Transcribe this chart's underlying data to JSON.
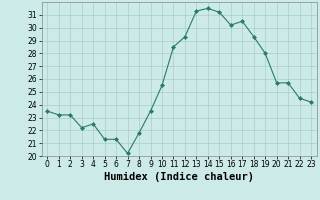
{
  "x": [
    0,
    1,
    2,
    3,
    4,
    5,
    6,
    7,
    8,
    9,
    10,
    11,
    12,
    13,
    14,
    15,
    16,
    17,
    18,
    19,
    20,
    21,
    22,
    23
  ],
  "y": [
    23.5,
    23.2,
    23.2,
    22.2,
    22.5,
    21.3,
    21.3,
    20.2,
    21.8,
    23.5,
    25.5,
    28.5,
    29.3,
    31.3,
    31.5,
    31.2,
    30.2,
    30.5,
    29.3,
    28.0,
    25.7,
    25.7,
    24.5,
    24.2
  ],
  "line_color": "#2a7a6a",
  "marker": "D",
  "marker_size": 2,
  "bg_color": "#cceae8",
  "grid_color": "#aacccc",
  "xlabel": "Humidex (Indice chaleur)",
  "ylim": [
    20,
    32
  ],
  "xlim": [
    -0.5,
    23.5
  ],
  "yticks": [
    20,
    21,
    22,
    23,
    24,
    25,
    26,
    27,
    28,
    29,
    30,
    31
  ],
  "xticks": [
    0,
    1,
    2,
    3,
    4,
    5,
    6,
    7,
    8,
    9,
    10,
    11,
    12,
    13,
    14,
    15,
    16,
    17,
    18,
    19,
    20,
    21,
    22,
    23
  ],
  "tick_fontsize": 5.5,
  "xlabel_fontsize": 7.5,
  "linewidth": 0.8
}
